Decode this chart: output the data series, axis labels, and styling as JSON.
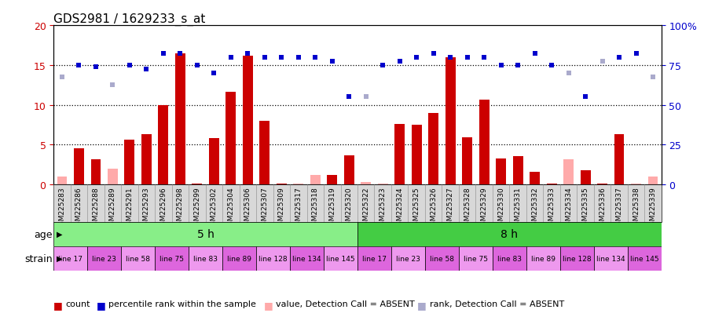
{
  "title": "GDS2981 / 1629233_s_at",
  "samples": [
    "GSM225283",
    "GSM225286",
    "GSM225288",
    "GSM225289",
    "GSM225291",
    "GSM225293",
    "GSM225296",
    "GSM225298",
    "GSM225299",
    "GSM225302",
    "GSM225304",
    "GSM225306",
    "GSM225307",
    "GSM225309",
    "GSM225317",
    "GSM225318",
    "GSM225319",
    "GSM225320",
    "GSM225322",
    "GSM225323",
    "GSM225324",
    "GSM225325",
    "GSM225326",
    "GSM225327",
    "GSM225328",
    "GSM225329",
    "GSM225330",
    "GSM225331",
    "GSM225332",
    "GSM225333",
    "GSM225334",
    "GSM225335",
    "GSM225336",
    "GSM225337",
    "GSM225338",
    "GSM225339"
  ],
  "count_values": [
    1.0,
    4.5,
    3.2,
    2.0,
    5.6,
    6.3,
    10.0,
    16.5,
    0.1,
    5.8,
    11.6,
    16.2,
    8.0,
    0.1,
    0.1,
    1.2,
    1.2,
    3.6,
    0.3,
    0.1,
    7.6,
    7.5,
    9.0,
    16.0,
    5.9,
    10.6,
    3.3,
    3.5,
    1.6,
    0.1,
    3.2,
    1.8,
    0.1,
    6.3,
    0.1,
    1.0
  ],
  "count_absent": [
    true,
    false,
    false,
    true,
    false,
    false,
    false,
    false,
    false,
    false,
    false,
    false,
    false,
    false,
    true,
    true,
    false,
    false,
    true,
    true,
    false,
    false,
    false,
    false,
    false,
    false,
    false,
    false,
    false,
    false,
    true,
    false,
    false,
    false,
    true,
    true
  ],
  "rank_values": [
    13.5,
    15.0,
    14.8,
    12.5,
    15.0,
    14.5,
    16.5,
    16.5,
    15.0,
    14.0,
    16.0,
    16.5,
    16.0,
    16.0,
    16.0,
    16.0,
    15.5,
    11.0,
    11.0,
    15.0,
    15.5,
    16.0,
    16.5,
    16.0,
    16.0,
    16.0,
    15.0,
    15.0,
    16.5,
    15.0,
    14.0,
    11.0,
    15.5,
    16.0,
    16.5,
    13.5
  ],
  "rank_absent": [
    true,
    false,
    false,
    true,
    false,
    false,
    false,
    false,
    false,
    false,
    false,
    false,
    false,
    false,
    false,
    false,
    false,
    false,
    true,
    false,
    false,
    false,
    false,
    false,
    false,
    false,
    false,
    false,
    false,
    false,
    true,
    false,
    true,
    false,
    false,
    true
  ],
  "ylim_left": [
    0,
    20
  ],
  "ylim_right": [
    0,
    100
  ],
  "yticks_left": [
    0,
    5,
    10,
    15,
    20
  ],
  "yticks_right": [
    0,
    25,
    50,
    75,
    100
  ],
  "bar_color_present": "#cc0000",
  "bar_color_absent": "#ffaaaa",
  "square_color_present": "#0000cc",
  "square_color_absent": "#aaaacc",
  "age_groups": [
    {
      "label": "5 h",
      "start": 0,
      "end": 18,
      "color": "#88ee88"
    },
    {
      "label": "8 h",
      "start": 18,
      "end": 36,
      "color": "#44cc44"
    }
  ],
  "strain_groups": [
    {
      "label": "line 17",
      "start": 0,
      "end": 2,
      "color": "#ee99ee"
    },
    {
      "label": "line 23",
      "start": 2,
      "end": 4,
      "color": "#dd66dd"
    },
    {
      "label": "line 58",
      "start": 4,
      "end": 6,
      "color": "#ee99ee"
    },
    {
      "label": "line 75",
      "start": 6,
      "end": 8,
      "color": "#dd66dd"
    },
    {
      "label": "line 83",
      "start": 8,
      "end": 10,
      "color": "#ee99ee"
    },
    {
      "label": "line 89",
      "start": 10,
      "end": 12,
      "color": "#dd66dd"
    },
    {
      "label": "line 128",
      "start": 12,
      "end": 14,
      "color": "#ee99ee"
    },
    {
      "label": "line 134",
      "start": 14,
      "end": 16,
      "color": "#dd66dd"
    },
    {
      "label": "line 145",
      "start": 16,
      "end": 18,
      "color": "#ee99ee"
    },
    {
      "label": "line 17",
      "start": 18,
      "end": 20,
      "color": "#dd66dd"
    },
    {
      "label": "line 23",
      "start": 20,
      "end": 22,
      "color": "#ee99ee"
    },
    {
      "label": "line 58",
      "start": 22,
      "end": 24,
      "color": "#dd66dd"
    },
    {
      "label": "line 75",
      "start": 24,
      "end": 26,
      "color": "#ee99ee"
    },
    {
      "label": "line 83",
      "start": 26,
      "end": 28,
      "color": "#dd66dd"
    },
    {
      "label": "line 89",
      "start": 28,
      "end": 30,
      "color": "#ee99ee"
    },
    {
      "label": "line 128",
      "start": 30,
      "end": 32,
      "color": "#dd66dd"
    },
    {
      "label": "line 134",
      "start": 32,
      "end": 34,
      "color": "#ee99ee"
    },
    {
      "label": "line 145",
      "start": 34,
      "end": 36,
      "color": "#dd66dd"
    }
  ],
  "bg_color": "#ffffff",
  "axis_label_color_left": "#cc0000",
  "axis_label_color_right": "#0000cc",
  "tick_bg_color": "#d8d8d8",
  "tick_border_color": "#888888"
}
